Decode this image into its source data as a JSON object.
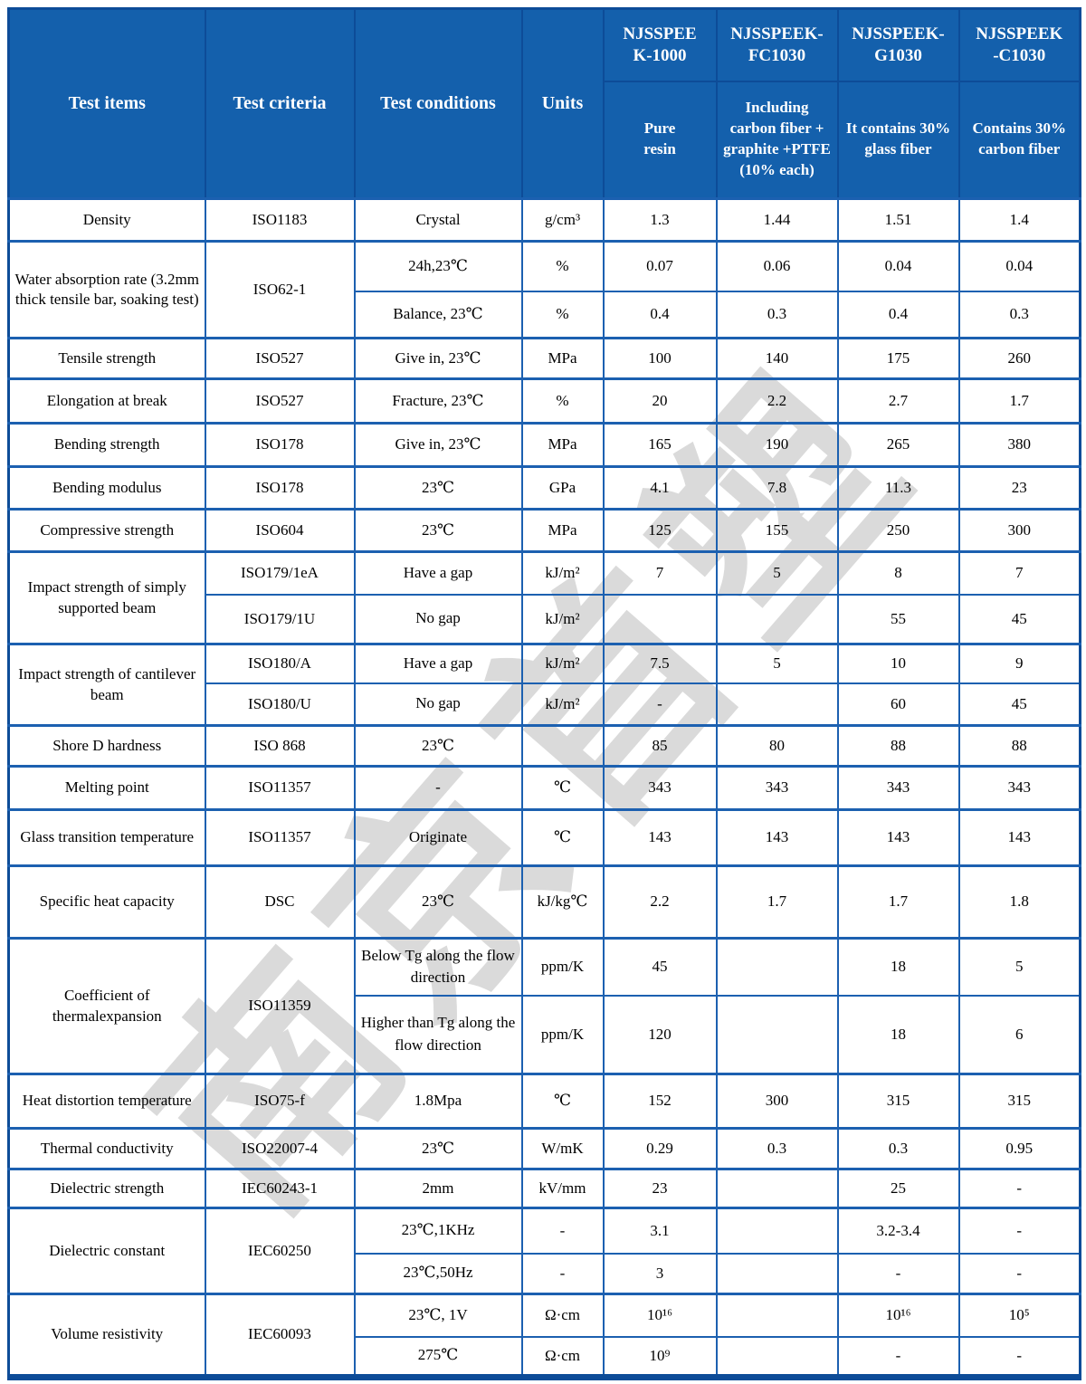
{
  "watermark_text": "南京首塑",
  "colors": {
    "header_bg": "#1460ac",
    "grid_blue": "#1c60b0",
    "outer_border": "#0d4c98",
    "watermark_gray": "#d6d6d6",
    "header_text": "#ffffff",
    "body_text": "#000000"
  },
  "header": {
    "columns": [
      "Test items",
      "Test criteria",
      "Test conditions",
      "Units"
    ],
    "products": [
      {
        "name": "NJSSPEE\nK-1000",
        "desc": "Pure\nresin"
      },
      {
        "name": "NJSSPEEK-\nFC1030",
        "desc": "Including carbon fiber + graphite +PTFE (10% each)"
      },
      {
        "name": "NJSSPEEK-\nG1030",
        "desc": "It contains 30% glass fiber"
      },
      {
        "name": "NJSSPEEK\n-C1030",
        "desc": "Contains 30% carbon fiber"
      }
    ]
  },
  "rows": [
    {
      "item": "Density",
      "criteria": "ISO1183",
      "condition": "Crystal",
      "unit": "g/cm³",
      "values": [
        "1.3",
        "1.44",
        "1.51",
        "1.4"
      ]
    },
    {
      "item": "Water absorption rate (3.2mm thick tensile bar, soaking test)",
      "item_rows": 2,
      "criteria": "ISO62-1",
      "criteria_rows": 2,
      "condition": "24h,23℃",
      "unit": "%",
      "values": [
        "0.07",
        "0.06",
        "0.04",
        "0.04"
      ]
    },
    {
      "condition": "Balance, 23℃",
      "unit": "%",
      "values": [
        "0.4",
        "0.3",
        "0.4",
        "0.3"
      ]
    },
    {
      "item": "Tensile strength",
      "criteria": "ISO527",
      "condition": "Give in, 23℃",
      "unit": "MPa",
      "values": [
        "100",
        "140",
        "175",
        "260"
      ]
    },
    {
      "item": "Elongation at break",
      "criteria": "ISO527",
      "condition": "Fracture, 23℃",
      "unit": "%",
      "values": [
        "20",
        "2.2",
        "2.7",
        "1.7"
      ]
    },
    {
      "item": "Bending strength",
      "criteria": "ISO178",
      "condition": "Give in, 23℃",
      "unit": "MPa",
      "values": [
        "165",
        "190",
        "265",
        "380"
      ]
    },
    {
      "item": "Bending modulus",
      "criteria": "ISO178",
      "condition": "23℃",
      "unit": "GPa",
      "values": [
        "4.1",
        "7.8",
        "11.3",
        "23"
      ]
    },
    {
      "item": "Compressive strength",
      "criteria": "ISO604",
      "condition": "23℃",
      "unit": "MPa",
      "values": [
        "125",
        "155",
        "250",
        "300"
      ]
    },
    {
      "item": "Impact strength of simply supported beam",
      "item_rows": 2,
      "criteria": "ISO179/1eA",
      "condition": "Have a gap",
      "unit": "kJ/m²",
      "values": [
        "7",
        "5",
        "8",
        "7"
      ]
    },
    {
      "criteria": "ISO179/1U",
      "condition": "No gap",
      "unit": "kJ/m²",
      "values": [
        "",
        "",
        "55",
        "45"
      ]
    },
    {
      "item": "Impact strength of cantilever beam",
      "item_rows": 2,
      "criteria": "ISO180/A",
      "condition": "Have a gap",
      "unit": "kJ/m²",
      "values": [
        "7.5",
        "5",
        "10",
        "9"
      ]
    },
    {
      "criteria": "ISO180/U",
      "condition": "No gap",
      "unit": "kJ/m²",
      "values": [
        "-",
        "",
        "60",
        "45"
      ]
    },
    {
      "item": "Shore D hardness",
      "criteria": "ISO 868",
      "condition": "23℃",
      "unit": "",
      "values": [
        "85",
        "80",
        "88",
        "88"
      ]
    },
    {
      "item": "Melting point",
      "criteria": "ISO11357",
      "condition": "-",
      "unit": "℃",
      "values": [
        "343",
        "343",
        "343",
        "343"
      ]
    },
    {
      "item": "Glass transition temperature",
      "criteria": "ISO11357",
      "condition": "Originate",
      "unit": "℃",
      "values": [
        "143",
        "143",
        "143",
        "143"
      ]
    },
    {
      "item": "Specific heat capacity",
      "criteria": "DSC",
      "condition": "23℃",
      "unit": "kJ/kg℃",
      "values": [
        "2.2",
        "1.7",
        "1.7",
        "1.8"
      ]
    },
    {
      "item": "Coefficient of thermalexpansion",
      "item_rows": 2,
      "criteria": "ISO11359",
      "criteria_rows": 2,
      "condition": "Below Tg along the flow direction",
      "unit": "ppm/K",
      "values": [
        "45",
        "",
        "18",
        "5"
      ]
    },
    {
      "condition": "Higher than Tg along the flow direction",
      "unit": "ppm/K",
      "values": [
        "120",
        "",
        "18",
        "6"
      ]
    },
    {
      "item": "Heat distortion temperature",
      "criteria": "ISO75-f",
      "condition": "1.8Mpa",
      "unit": "℃",
      "values": [
        "152",
        "300",
        "315",
        "315"
      ]
    },
    {
      "item": "Thermal conductivity",
      "criteria": "ISO22007-4",
      "condition": "23℃",
      "unit": "W/mK",
      "values": [
        "0.29",
        "0.3",
        "0.3",
        "0.95"
      ]
    },
    {
      "item": "Dielectric strength",
      "criteria": "IEC60243-1",
      "condition": "2mm",
      "unit": "kV/mm",
      "values": [
        "23",
        "",
        "25",
        "-"
      ]
    },
    {
      "item": "Dielectric constant",
      "item_rows": 2,
      "criteria": "IEC60250",
      "criteria_rows": 2,
      "condition": "23℃,1KHz",
      "unit": "-",
      "values": [
        "3.1",
        "",
        "3.2-3.4",
        "-"
      ]
    },
    {
      "condition": "23℃,50Hz",
      "unit": "-",
      "values": [
        "3",
        "",
        "-",
        "-"
      ]
    },
    {
      "item": "Volume resistivity",
      "item_rows": 2,
      "criteria": "IEC60093",
      "criteria_rows": 2,
      "condition": "23℃, 1V",
      "unit": "Ω·cm",
      "values": [
        "10¹⁶",
        "",
        "10¹⁶",
        "10⁵"
      ]
    },
    {
      "condition": "275℃",
      "unit": "Ω·cm",
      "values": [
        "10⁹",
        "",
        "-",
        "-"
      ]
    }
  ]
}
